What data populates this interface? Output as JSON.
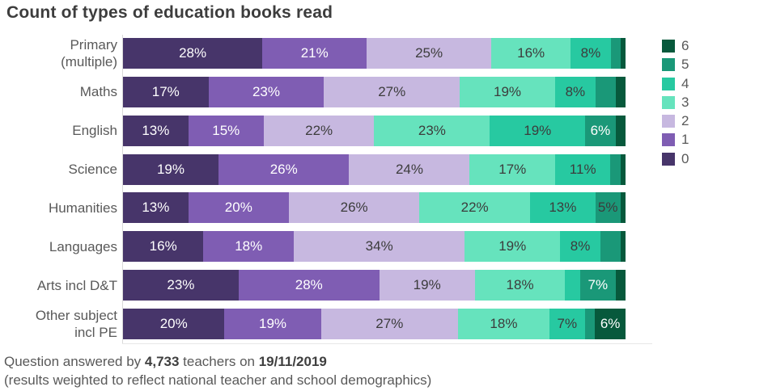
{
  "title": "Count of types of education books read",
  "footer": {
    "line1_prefix": "Question answered by ",
    "respondents": "4,733",
    "line1_middle": " teachers on ",
    "date": "19/11/2019",
    "line2": "(results weighted to reflect national teacher and school demographics)"
  },
  "colors": {
    "series": [
      "#47356a",
      "#7f5db3",
      "#c7b8e0",
      "#66e3bd",
      "#27c9a1",
      "#1a9878",
      "#07593c"
    ],
    "title_text": "#3d3d3d",
    "axis_text": "#595959",
    "bar_label_dark": "#3c3c3c",
    "bar_label_light": "#ffffff",
    "axis_line": "#d9d9d9"
  },
  "legend": [
    {
      "label": "6",
      "color": "#07593c"
    },
    {
      "label": "5",
      "color": "#1a9878"
    },
    {
      "label": "4",
      "color": "#27c9a1"
    },
    {
      "label": "3",
      "color": "#66e3bd"
    },
    {
      "label": "2",
      "color": "#c7b8e0"
    },
    {
      "label": "1",
      "color": "#7f5db3"
    },
    {
      "label": "0",
      "color": "#47356a"
    }
  ],
  "chart_data": {
    "type": "bar",
    "stacked": true,
    "orientation": "horizontal",
    "unit": "%",
    "title": "Count of types of education books read",
    "series_names": [
      "0",
      "1",
      "2",
      "3",
      "4",
      "5",
      "6"
    ],
    "legend_position": "right",
    "legend_order": [
      "6",
      "5",
      "4",
      "3",
      "2",
      "1",
      "0"
    ],
    "categories": [
      "Primary (multiple)",
      "Maths",
      "English",
      "Science",
      "Humanities",
      "Languages",
      "Arts incl D&T",
      "Other subject incl PE"
    ],
    "rows": [
      {
        "category": "Primary (multiple)",
        "category_lines": [
          "Primary",
          "(multiple)"
        ],
        "segments": [
          {
            "series": "0",
            "value": 28,
            "label": "28%",
            "text": "light"
          },
          {
            "series": "1",
            "value": 21,
            "label": "21%",
            "text": "light"
          },
          {
            "series": "2",
            "value": 25,
            "label": "25%",
            "text": "dark"
          },
          {
            "series": "3",
            "value": 16,
            "label": "16%",
            "text": "dark"
          },
          {
            "series": "4",
            "value": 8,
            "label": "8%",
            "text": "dark"
          },
          {
            "series": "5",
            "value": 2,
            "label": "",
            "text": "light"
          },
          {
            "series": "6",
            "value": 1,
            "label": "",
            "text": "light"
          }
        ]
      },
      {
        "category": "Maths",
        "category_lines": [
          "Maths"
        ],
        "segments": [
          {
            "series": "0",
            "value": 17,
            "label": "17%",
            "text": "light"
          },
          {
            "series": "1",
            "value": 23,
            "label": "23%",
            "text": "light"
          },
          {
            "series": "2",
            "value": 27,
            "label": "27%",
            "text": "dark"
          },
          {
            "series": "3",
            "value": 19,
            "label": "19%",
            "text": "dark"
          },
          {
            "series": "4",
            "value": 8,
            "label": "8%",
            "text": "dark"
          },
          {
            "series": "5",
            "value": 4,
            "label": "",
            "text": "light"
          },
          {
            "series": "6",
            "value": 2,
            "label": "",
            "text": "light"
          }
        ]
      },
      {
        "category": "English",
        "category_lines": [
          "English"
        ],
        "segments": [
          {
            "series": "0",
            "value": 13,
            "label": "13%",
            "text": "light"
          },
          {
            "series": "1",
            "value": 15,
            "label": "15%",
            "text": "light"
          },
          {
            "series": "2",
            "value": 22,
            "label": "22%",
            "text": "dark"
          },
          {
            "series": "3",
            "value": 23,
            "label": "23%",
            "text": "dark"
          },
          {
            "series": "4",
            "value": 19,
            "label": "19%",
            "text": "dark"
          },
          {
            "series": "5",
            "value": 6,
            "label": "6%",
            "text": "light"
          },
          {
            "series": "6",
            "value": 2,
            "label": "",
            "text": "light"
          }
        ]
      },
      {
        "category": "Science",
        "category_lines": [
          "Science"
        ],
        "segments": [
          {
            "series": "0",
            "value": 19,
            "label": "19%",
            "text": "light"
          },
          {
            "series": "1",
            "value": 26,
            "label": "26%",
            "text": "light"
          },
          {
            "series": "2",
            "value": 24,
            "label": "24%",
            "text": "dark"
          },
          {
            "series": "3",
            "value": 17,
            "label": "17%",
            "text": "dark"
          },
          {
            "series": "4",
            "value": 11,
            "label": "11%",
            "text": "dark"
          },
          {
            "series": "5",
            "value": 2,
            "label": "",
            "text": "light"
          },
          {
            "series": "6",
            "value": 1,
            "label": "",
            "text": "light"
          }
        ]
      },
      {
        "category": "Humanities",
        "category_lines": [
          "Humanities"
        ],
        "segments": [
          {
            "series": "0",
            "value": 13,
            "label": "13%",
            "text": "light"
          },
          {
            "series": "1",
            "value": 20,
            "label": "20%",
            "text": "light"
          },
          {
            "series": "2",
            "value": 26,
            "label": "26%",
            "text": "dark"
          },
          {
            "series": "3",
            "value": 22,
            "label": "22%",
            "text": "dark"
          },
          {
            "series": "4",
            "value": 13,
            "label": "13%",
            "text": "dark"
          },
          {
            "series": "5",
            "value": 5,
            "label": "5%",
            "text": "dark"
          },
          {
            "series": "6",
            "value": 1,
            "label": "",
            "text": "light"
          }
        ]
      },
      {
        "category": "Languages",
        "category_lines": [
          "Languages"
        ],
        "segments": [
          {
            "series": "0",
            "value": 16,
            "label": "16%",
            "text": "light"
          },
          {
            "series": "1",
            "value": 18,
            "label": "18%",
            "text": "light"
          },
          {
            "series": "2",
            "value": 34,
            "label": "34%",
            "text": "dark"
          },
          {
            "series": "3",
            "value": 19,
            "label": "19%",
            "text": "dark"
          },
          {
            "series": "4",
            "value": 8,
            "label": "8%",
            "text": "dark"
          },
          {
            "series": "5",
            "value": 4,
            "label": "",
            "text": "light"
          },
          {
            "series": "6",
            "value": 1,
            "label": "",
            "text": "light"
          }
        ]
      },
      {
        "category": "Arts incl D&T",
        "category_lines": [
          "Arts incl D&T"
        ],
        "segments": [
          {
            "series": "0",
            "value": 23,
            "label": "23%",
            "text": "light"
          },
          {
            "series": "1",
            "value": 28,
            "label": "28%",
            "text": "light"
          },
          {
            "series": "2",
            "value": 19,
            "label": "19%",
            "text": "dark"
          },
          {
            "series": "3",
            "value": 18,
            "label": "18%",
            "text": "dark"
          },
          {
            "series": "4",
            "value": 3,
            "label": "",
            "text": "dark"
          },
          {
            "series": "5",
            "value": 7,
            "label": "7%",
            "text": "light"
          },
          {
            "series": "6",
            "value": 2,
            "label": "",
            "text": "light"
          }
        ]
      },
      {
        "category": "Other subject incl PE",
        "category_lines": [
          "Other subject",
          "incl PE"
        ],
        "segments": [
          {
            "series": "0",
            "value": 20,
            "label": "20%",
            "text": "light"
          },
          {
            "series": "1",
            "value": 19,
            "label": "19%",
            "text": "light"
          },
          {
            "series": "2",
            "value": 27,
            "label": "27%",
            "text": "dark"
          },
          {
            "series": "3",
            "value": 18,
            "label": "18%",
            "text": "dark"
          },
          {
            "series": "4",
            "value": 7,
            "label": "7%",
            "text": "dark"
          },
          {
            "series": "5",
            "value": 2,
            "label": "",
            "text": "light"
          },
          {
            "series": "6",
            "value": 6,
            "label": "6%",
            "text": "light"
          }
        ]
      }
    ]
  }
}
